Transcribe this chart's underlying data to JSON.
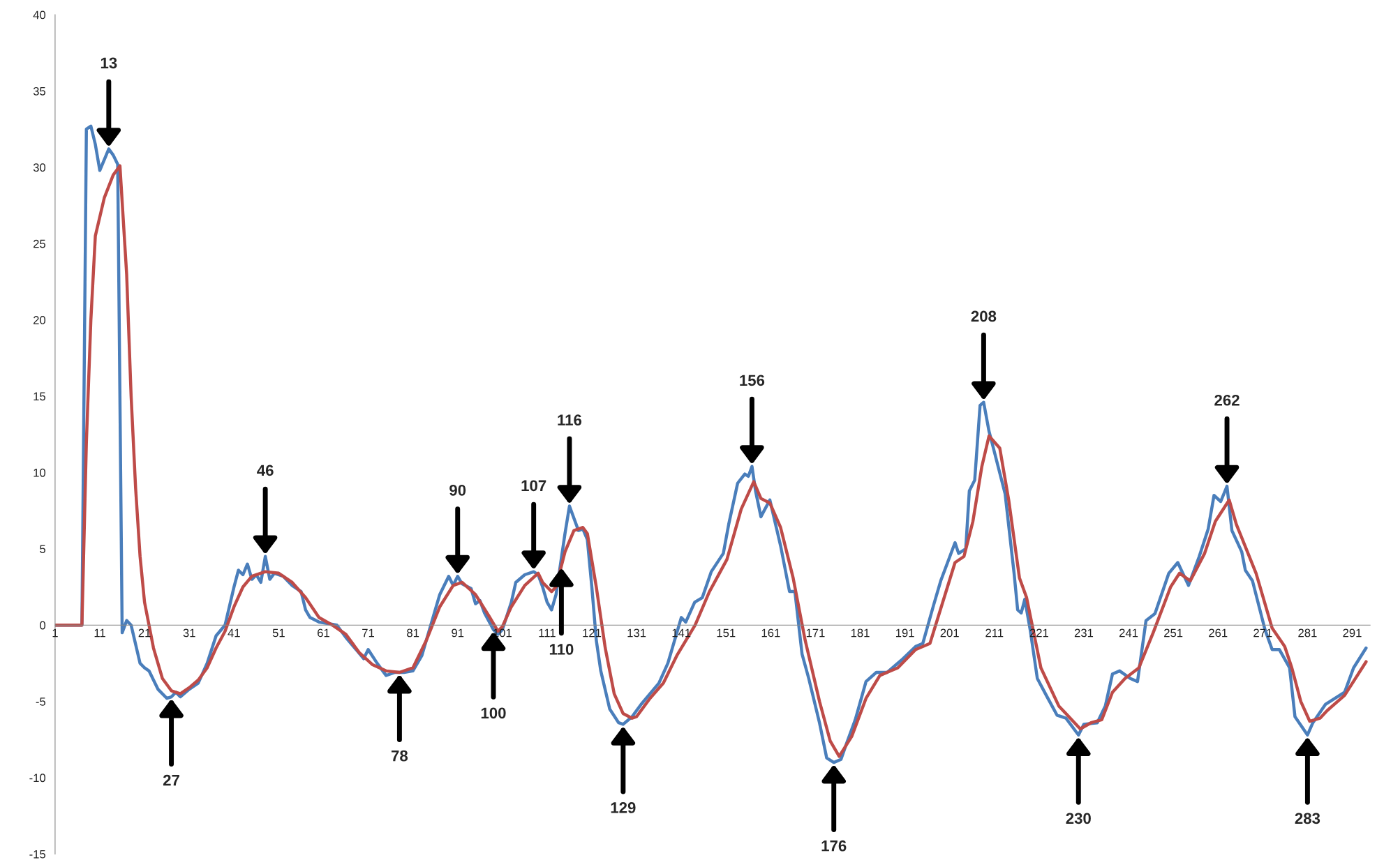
{
  "chart_data": {
    "type": "line",
    "xlim": [
      1,
      295
    ],
    "ylim": [
      -15,
      40
    ],
    "xticks": [
      1,
      11,
      21,
      31,
      41,
      51,
      61,
      71,
      81,
      91,
      101,
      111,
      121,
      131,
      141,
      151,
      161,
      171,
      181,
      191,
      201,
      211,
      221,
      231,
      241,
      251,
      261,
      271,
      281,
      291
    ],
    "yticks": [
      -15,
      -10,
      -5,
      0,
      5,
      10,
      15,
      20,
      25,
      30,
      35,
      40
    ],
    "marker": "none",
    "line_style": "solid",
    "series": [
      {
        "color": "#4a7ebb",
        "x": [
          1,
          7,
          8,
          9,
          10,
          11,
          13,
          14,
          15,
          16,
          17,
          18,
          20,
          21,
          22,
          24,
          26,
          27,
          28,
          29,
          31,
          33,
          35,
          37,
          39,
          41,
          42,
          43,
          44,
          45,
          46,
          47,
          48,
          49,
          50,
          52,
          54,
          56,
          57,
          58,
          60,
          62,
          64,
          66,
          68,
          70,
          71,
          73,
          75,
          77,
          79,
          81,
          83,
          85,
          87,
          89,
          90,
          91,
          92,
          94,
          95,
          96,
          97,
          99,
          100,
          101,
          103,
          104,
          106,
          108,
          109,
          110,
          111,
          112,
          113,
          114,
          115,
          116,
          117,
          118,
          119,
          120,
          121,
          122,
          123,
          125,
          127,
          128,
          130,
          132,
          134,
          136,
          138,
          139,
          141,
          142,
          144,
          145.7,
          147.7,
          150.4,
          151.6,
          153.6,
          155.2,
          156,
          156.8,
          157.6,
          158.8,
          160.8,
          163.2,
          165.2,
          166.4,
          168,
          169.5,
          171.9,
          173.5,
          175.1,
          176.7,
          177.9,
          179.9,
          182.3,
          184.6,
          187,
          190.2,
          193.4,
          195,
          197.4,
          199,
          202.2,
          203,
          204.6,
          205.4,
          206.6,
          207.8,
          208.6,
          209.8,
          210.6,
          213.4,
          215.4,
          216.2,
          217,
          217.8,
          219,
          220.6,
          222.6,
          225,
          227,
          229.8,
          231,
          234,
          235.8,
          237.4,
          239,
          241.4,
          243,
          244.9,
          246.9,
          250,
          252,
          254.4,
          256.8,
          258.8,
          260.1,
          261.6,
          263,
          264.1,
          266.3,
          267.1,
          268.7,
          271.5,
          273.1,
          274.7,
          277,
          278.2,
          281,
          282.2,
          285,
          289.3,
          291.3,
          294.1
        ],
        "values": [
          0,
          0,
          32.5,
          32.7,
          31.5,
          29.8,
          31.2,
          30.8,
          30.2,
          -0.5,
          0.3,
          0,
          -2.5,
          -2.8,
          -3.0,
          -4.2,
          -4.8,
          -4.7,
          -4.4,
          -4.7,
          -4.2,
          -3.8,
          -2.5,
          -0.7,
          0,
          2.5,
          3.6,
          3.3,
          4.0,
          3.0,
          3.3,
          2.8,
          4.5,
          3.0,
          3.4,
          3.2,
          2.6,
          2.2,
          1.0,
          0.5,
          0.2,
          0.1,
          0,
          -0.8,
          -1.5,
          -2.2,
          -1.6,
          -2.5,
          -3.3,
          -3.1,
          -3.1,
          -3.0,
          -2.0,
          0,
          2.0,
          3.2,
          2.6,
          3.2,
          2.7,
          2.4,
          1.4,
          1.6,
          0.8,
          -0.3,
          -0.6,
          -0.3,
          1.5,
          2.8,
          3.3,
          3.5,
          3.3,
          2.5,
          1.5,
          1.0,
          2.0,
          4.0,
          6.0,
          7.8,
          7.0,
          6.2,
          6.3,
          5.6,
          2.5,
          -1.0,
          -3.0,
          -5.5,
          -6.4,
          -6.5,
          -6.0,
          -5.2,
          -4.5,
          -3.8,
          -2.5,
          -1.5,
          0.5,
          0.2,
          1.5,
          1.8,
          3.5,
          4.7,
          6.6,
          9.3,
          9.9,
          9.75,
          10.4,
          8.8,
          7.1,
          8.2,
          5.2,
          2.2,
          2.2,
          -1.9,
          -3.5,
          -6.4,
          -8.7,
          -9.0,
          -8.8,
          -7.8,
          -6.2,
          -3.7,
          -3.1,
          -3.1,
          -2.3,
          -1.4,
          -1.2,
          1.3,
          2.9,
          5.4,
          4.7,
          5.0,
          8.8,
          9.5,
          14.4,
          14.6,
          12.7,
          11.8,
          8.6,
          3.4,
          1.0,
          0.8,
          1.7,
          -0.3,
          -3.5,
          -4.6,
          -5.9,
          -6.1,
          -7.2,
          -6.5,
          -6.4,
          -5.3,
          -3.2,
          -3.0,
          -3.5,
          -3.7,
          0.3,
          0.75,
          3.4,
          4.1,
          2.6,
          4.5,
          6.3,
          8.5,
          8.1,
          9.1,
          6.2,
          4.8,
          3.6,
          2.9,
          -0.3,
          -1.6,
          -1.6,
          -2.8,
          -6.0,
          -7.2,
          -6.4,
          -5.2,
          -4.4,
          -2.8,
          -1.5
        ]
      },
      {
        "color": "#be4b48",
        "x": [
          1,
          7,
          8,
          9,
          10,
          12,
          14,
          15.5,
          17,
          18,
          19,
          20,
          21,
          23,
          25,
          27,
          29,
          31,
          33,
          35,
          37,
          39,
          41,
          43,
          45,
          48,
          51,
          54,
          57,
          60,
          63,
          66,
          69,
          72,
          75,
          78,
          81,
          84,
          87,
          90,
          92,
          95,
          98,
          100,
          101,
          103,
          106,
          109,
          110,
          112,
          113,
          115,
          117,
          119,
          120,
          122,
          124,
          126,
          128,
          130,
          131,
          134,
          137,
          140,
          144.1,
          147.3,
          151.2,
          154.4,
          157.2,
          158.8,
          160.8,
          163.2,
          166,
          168.7,
          171.9,
          174.3,
          176.3,
          179.1,
          182.3,
          185.4,
          189.4,
          193.4,
          196.6,
          202.2,
          204.2,
          206.2,
          208.2,
          209.8,
          212.2,
          214.2,
          216.6,
          218.2,
          221.4,
          225.4,
          230.2,
          232.6,
          235,
          237.4,
          240.2,
          243.3,
          246.5,
          250.4,
          252.4,
          254.8,
          258,
          260.4,
          263.5,
          265.1,
          269.5,
          273.1,
          275.9,
          277.5,
          279.5,
          281.5,
          283.8,
          285.4,
          289.3,
          294.1
        ],
        "values": [
          0,
          0,
          12,
          20,
          25.5,
          28,
          29.5,
          30.1,
          23,
          15,
          9,
          4.5,
          1.5,
          -1.5,
          -3.5,
          -4.3,
          -4.5,
          -4.1,
          -3.6,
          -2.8,
          -1.5,
          -0.4,
          1.2,
          2.5,
          3.2,
          3.5,
          3.4,
          2.8,
          1.8,
          0.5,
          0,
          -0.6,
          -1.8,
          -2.6,
          -3.0,
          -3.1,
          -2.8,
          -1.0,
          1.2,
          2.6,
          2.8,
          2.0,
          0.6,
          -0.4,
          -0.1,
          1.2,
          2.6,
          3.4,
          2.8,
          2.2,
          2.5,
          4.8,
          6.2,
          6.4,
          6.0,
          2.5,
          -1.5,
          -4.5,
          -5.8,
          -6.1,
          -6.0,
          -4.8,
          -3.8,
          -2.0,
          0,
          2.2,
          4.3,
          7.6,
          9.4,
          8.3,
          8.0,
          6.4,
          3.1,
          -1.0,
          -5.0,
          -7.6,
          -8.6,
          -7.3,
          -4.8,
          -3.3,
          -2.8,
          -1.6,
          -1.2,
          4.1,
          4.5,
          6.8,
          10.4,
          12.4,
          11.6,
          8.2,
          3.1,
          1.8,
          -2.8,
          -5.3,
          -6.8,
          -6.4,
          -6.2,
          -4.4,
          -3.5,
          -2.8,
          -0.5,
          2.5,
          3.4,
          2.9,
          4.7,
          6.8,
          8.2,
          6.6,
          3.4,
          -0.2,
          -1.4,
          -2.8,
          -5.0,
          -6.3,
          -6.1,
          -5.6,
          -4.6,
          -2.4
        ]
      }
    ],
    "annotations": [
      {
        "text": "13",
        "x": 13,
        "y": 31.2
      },
      {
        "text": "27",
        "x": 27,
        "y": -4.7
      },
      {
        "text": "46",
        "x": 48,
        "y": 4.5
      },
      {
        "text": "78",
        "x": 78,
        "y": -3.1
      },
      {
        "text": "90",
        "x": 91,
        "y": 3.2
      },
      {
        "text": "100",
        "x": 99,
        "y": -0.3
      },
      {
        "text": "107",
        "x": 108,
        "y": 3.5
      },
      {
        "text": "110",
        "x": 114.2,
        "y": 3.88
      },
      {
        "text": "116",
        "x": 116,
        "y": 7.8
      },
      {
        "text": "129",
        "x": 128,
        "y": -6.5
      },
      {
        "text": "156",
        "x": 156.8,
        "y": 10.4
      },
      {
        "text": "176",
        "x": 175.1,
        "y": -9.0
      },
      {
        "text": "208",
        "x": 208.6,
        "y": 14.6
      },
      {
        "text": "230",
        "x": 229.8,
        "y": -7.2
      },
      {
        "text": "262",
        "x": 263,
        "y": 9.1
      },
      {
        "text": "283",
        "x": 281,
        "y": -7.2
      }
    ]
  }
}
